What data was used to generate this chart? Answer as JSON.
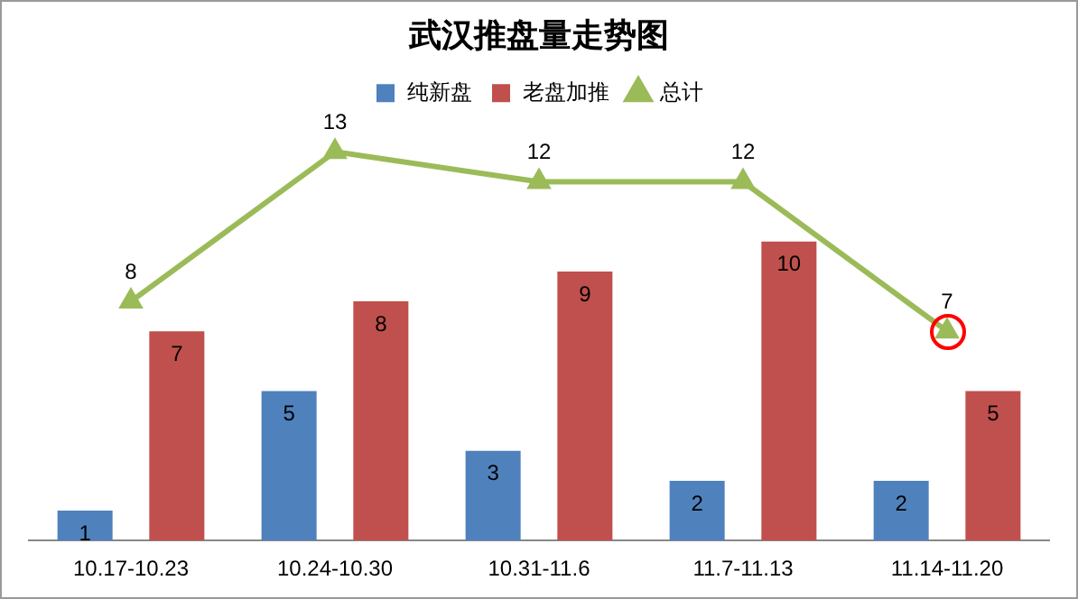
{
  "chart_data": {
    "type": "bar",
    "title": "武汉推盘量走势图",
    "categories": [
      "10.17-10.23",
      "10.24-10.30",
      "10.31-11.6",
      "11.7-11.13",
      "11.14-11.20"
    ],
    "series": [
      {
        "name": "纯新盘",
        "color": "#4f81bd",
        "values": [
          1,
          5,
          3,
          2,
          2
        ]
      },
      {
        "name": "老盘加推",
        "color": "#c0504d",
        "values": [
          7,
          8,
          9,
          10,
          5
        ]
      },
      {
        "name": "总计",
        "color": "#9bbb59",
        "type": "line",
        "marker": "triangle",
        "values": [
          8,
          13,
          12,
          12,
          7
        ]
      }
    ],
    "data_labels": true,
    "legend": "top",
    "grid": false,
    "tick_labels": "x"
  }
}
